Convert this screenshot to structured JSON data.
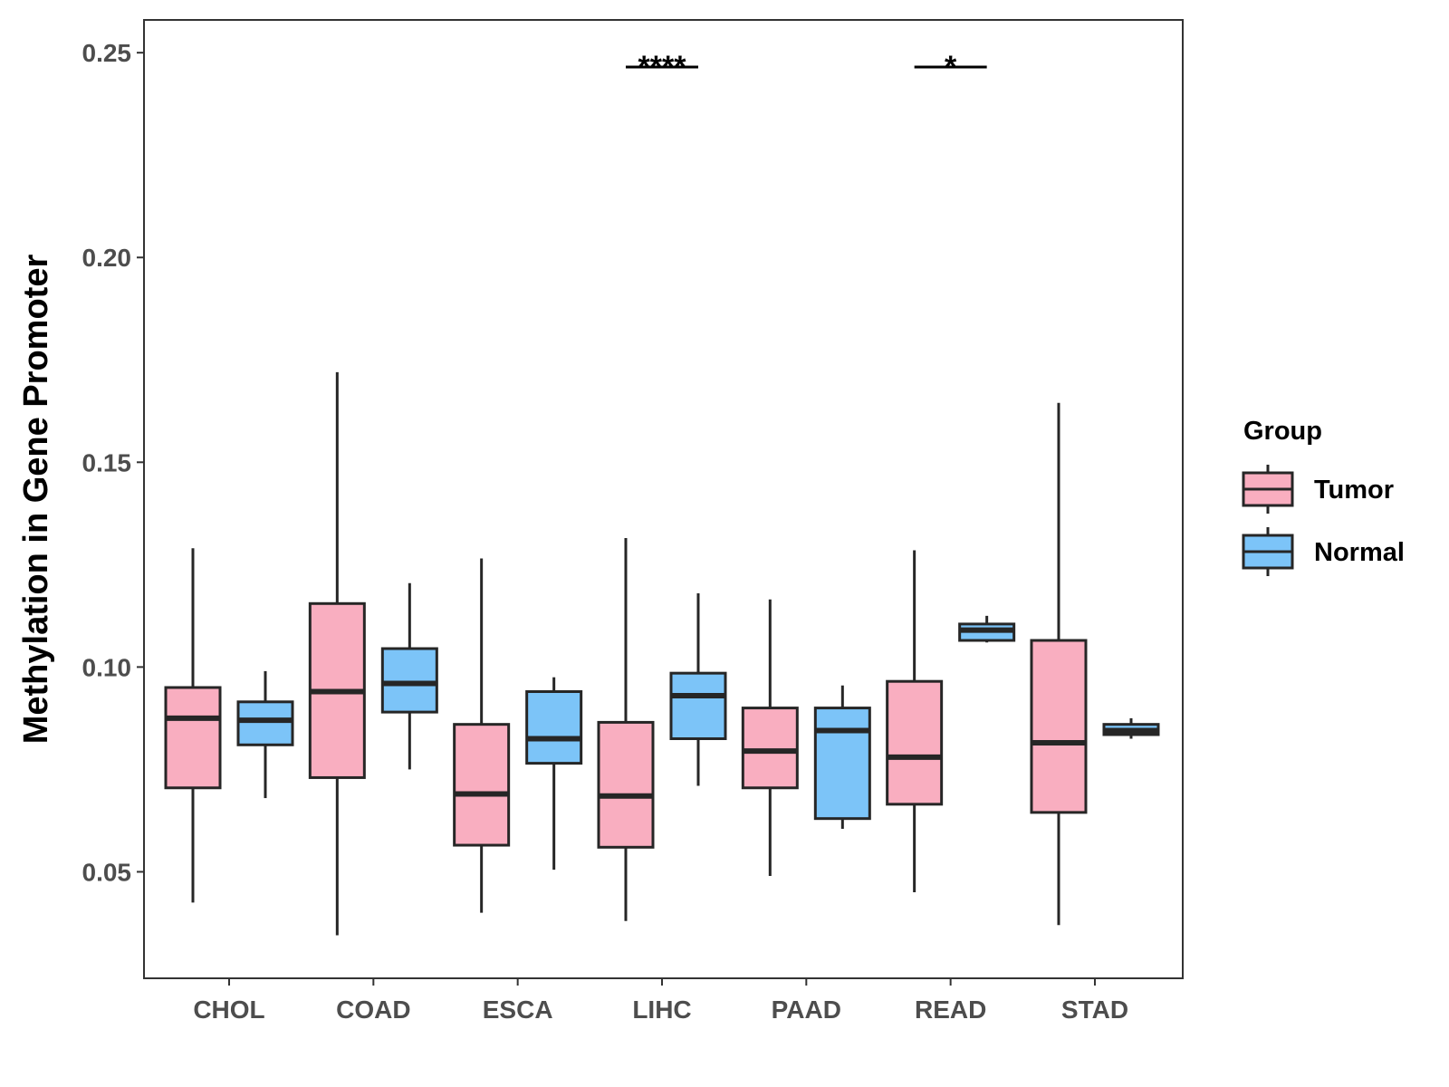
{
  "chart_data": {
    "type": "boxplot",
    "title": "",
    "xlabel": "",
    "ylabel": "Methylation in Gene Promoter",
    "ylim": [
      0.024,
      0.258
    ],
    "yticks": [
      0.05,
      0.1,
      0.15,
      0.2,
      0.25
    ],
    "ytick_labels": [
      "0.05",
      "0.10",
      "0.15",
      "0.20",
      "0.25"
    ],
    "categories": [
      "CHOL",
      "COAD",
      "ESCA",
      "LIHC",
      "PAAD",
      "READ",
      "STAD"
    ],
    "legend": {
      "title": "Group",
      "position": "right",
      "entries": [
        {
          "name": "Tumor",
          "color": "#f9aec0"
        },
        {
          "name": "Normal",
          "color": "#7cc4f8"
        }
      ]
    },
    "series": [
      {
        "name": "Tumor",
        "color": "#f9aec0",
        "boxes": [
          {
            "category": "CHOL",
            "min": 0.0425,
            "q1": 0.0705,
            "median": 0.0875,
            "q3": 0.095,
            "max": 0.129
          },
          {
            "category": "COAD",
            "min": 0.0345,
            "q1": 0.073,
            "median": 0.094,
            "q3": 0.1155,
            "max": 0.172
          },
          {
            "category": "ESCA",
            "min": 0.04,
            "q1": 0.0565,
            "median": 0.069,
            "q3": 0.086,
            "max": 0.1265
          },
          {
            "category": "LIHC",
            "min": 0.038,
            "q1": 0.056,
            "median": 0.0685,
            "q3": 0.0865,
            "max": 0.1315
          },
          {
            "category": "PAAD",
            "min": 0.049,
            "q1": 0.0705,
            "median": 0.0795,
            "q3": 0.09,
            "max": 0.1165
          },
          {
            "category": "READ",
            "min": 0.045,
            "q1": 0.0665,
            "median": 0.078,
            "q3": 0.0965,
            "max": 0.1285
          },
          {
            "category": "STAD",
            "min": 0.037,
            "q1": 0.0645,
            "median": 0.0815,
            "q3": 0.1065,
            "max": 0.1645
          }
        ]
      },
      {
        "name": "Normal",
        "color": "#7cc4f8",
        "boxes": [
          {
            "category": "CHOL",
            "min": 0.068,
            "q1": 0.081,
            "median": 0.087,
            "q3": 0.0915,
            "max": 0.099
          },
          {
            "category": "COAD",
            "min": 0.075,
            "q1": 0.089,
            "median": 0.096,
            "q3": 0.1045,
            "max": 0.1205
          },
          {
            "category": "ESCA",
            "min": 0.0505,
            "q1": 0.0765,
            "median": 0.0825,
            "q3": 0.094,
            "max": 0.0975
          },
          {
            "category": "LIHC",
            "min": 0.071,
            "q1": 0.0825,
            "median": 0.093,
            "q3": 0.0985,
            "max": 0.118
          },
          {
            "category": "PAAD",
            "min": 0.0605,
            "q1": 0.063,
            "median": 0.0845,
            "q3": 0.09,
            "max": 0.0955
          },
          {
            "category": "READ",
            "min": 0.106,
            "q1": 0.1065,
            "median": 0.109,
            "q3": 0.1105,
            "max": 0.1125
          },
          {
            "category": "STAD",
            "min": 0.0825,
            "q1": 0.0835,
            "median": 0.0845,
            "q3": 0.086,
            "max": 0.0875
          }
        ]
      }
    ],
    "significance": [
      {
        "category": "LIHC",
        "label": "****",
        "y": 0.2465
      },
      {
        "category": "READ",
        "label": "*",
        "y": 0.2465
      }
    ]
  }
}
